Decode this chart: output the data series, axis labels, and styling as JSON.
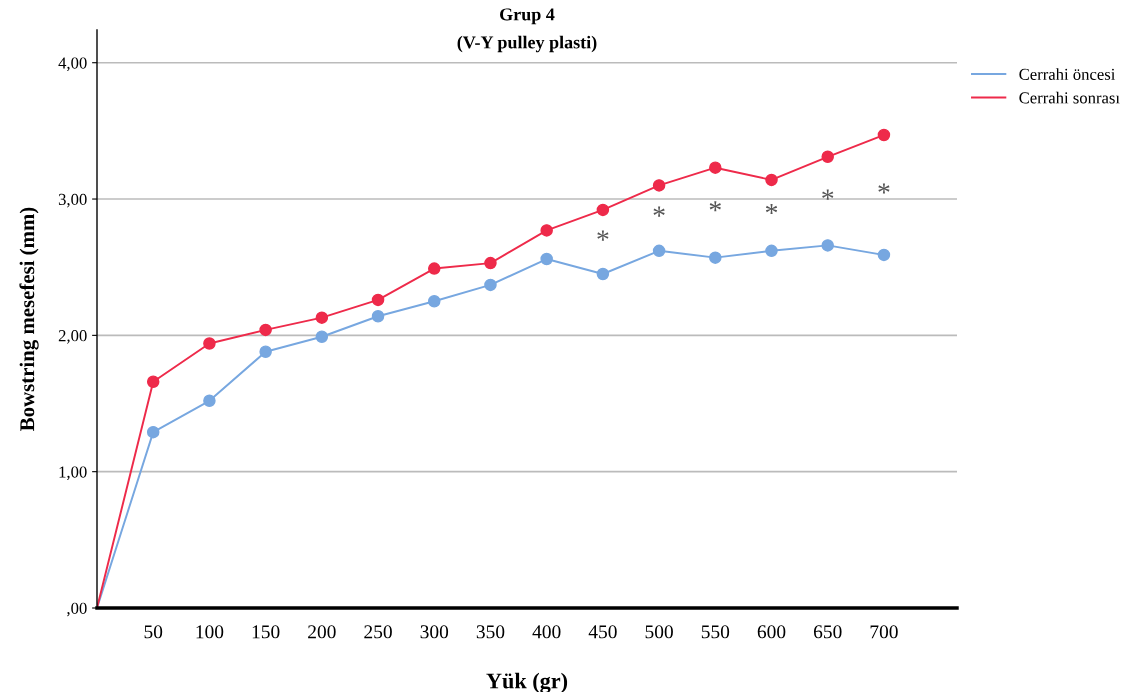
{
  "chart_data": {
    "type": "line",
    "title": "Grup 4",
    "subtitle": "(V-Y pulley plasti)",
    "xlabel": "Yük (gr)",
    "ylabel": "Bowstring mesefesi (mm)",
    "categories": [
      null,
      "50",
      "100",
      "150",
      "200",
      "250",
      "300",
      "350",
      "400",
      "450",
      "500",
      "550",
      "600",
      "650",
      "700"
    ],
    "series": [
      {
        "name": "Cerrahi öncesi",
        "color": "#77a7e0",
        "values": [
          0,
          1.29,
          1.52,
          1.88,
          1.99,
          2.14,
          2.25,
          2.37,
          2.56,
          2.45,
          2.62,
          2.57,
          2.62,
          2.66,
          2.59
        ]
      },
      {
        "name": "Cerrahi sonrası",
        "color": "#ee2a4a",
        "values": [
          0,
          1.66,
          1.94,
          2.04,
          2.13,
          2.26,
          2.49,
          2.53,
          2.77,
          2.92,
          3.1,
          3.23,
          3.14,
          3.31,
          3.47
        ]
      }
    ],
    "ylim": [
      0,
      4.24
    ],
    "yticks": [
      {
        "value": 0,
        "label": ",00"
      },
      {
        "value": 1,
        "label": "1,00"
      },
      {
        "value": 2,
        "label": "2,00"
      },
      {
        "value": 3,
        "label": "3,00"
      },
      {
        "value": 4,
        "label": "4,00"
      }
    ],
    "annotations": [
      "*",
      "*",
      "*",
      "*",
      "*",
      "*"
    ],
    "grid": "y",
    "legend": "top right",
    "marker": "circle",
    "line_style": "solid"
  }
}
